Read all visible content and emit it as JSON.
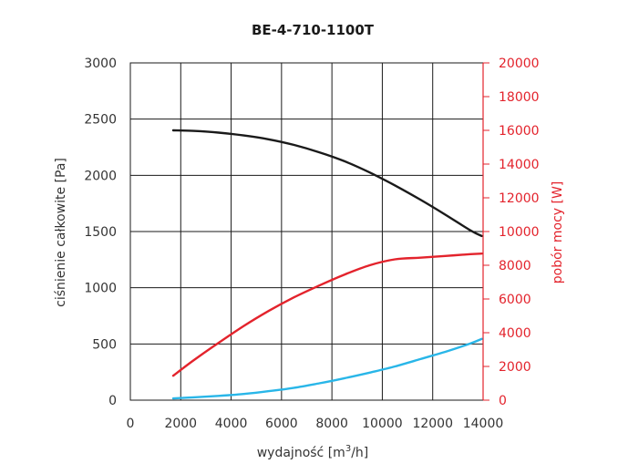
{
  "chart_data": {
    "type": "line",
    "title": "BE-4-710-1100T",
    "xlabel_prefix": "wydajność [m",
    "xlabel_sup": "3",
    "xlabel_suffix": "/h]",
    "ylabel": "ciśnienie całkowite [Pa]",
    "y2label": "pobór mocy [W]",
    "xlim": [
      0,
      14000
    ],
    "ylim": [
      0,
      3000
    ],
    "y2lim": [
      0,
      20000
    ],
    "x_ticks": [
      0,
      2000,
      4000,
      6000,
      8000,
      10000,
      12000,
      14000
    ],
    "y_ticks": [
      0,
      500,
      1000,
      1500,
      2000,
      2500,
      3000
    ],
    "y2_ticks": [
      0,
      2000,
      4000,
      6000,
      8000,
      10000,
      12000,
      14000,
      16000,
      18000,
      20000
    ],
    "grid": true,
    "colors": {
      "pressure": "#1a1a1a",
      "power": "#e3232c",
      "efficiency": "#29b6e8",
      "y2_axis": "#e3232c",
      "axis_text": "#333333"
    },
    "series": [
      {
        "key": "pressure",
        "axis": "left",
        "x": [
          1700,
          2500,
          3500,
          4500,
          5500,
          6500,
          7500,
          8500,
          9500,
          10500,
          11500,
          12500,
          13500,
          13950
        ],
        "y": [
          2400,
          2395,
          2380,
          2355,
          2320,
          2270,
          2205,
          2125,
          2025,
          1910,
          1785,
          1650,
          1510,
          1460
        ]
      },
      {
        "key": "power",
        "axis": "right",
        "x": [
          1700,
          2500,
          3500,
          4500,
          5500,
          6500,
          7500,
          8500,
          9500,
          10500,
          11500,
          12500,
          13500,
          13950
        ],
        "y": [
          1450,
          2350,
          3400,
          4400,
          5300,
          6100,
          6800,
          7450,
          8000,
          8350,
          8450,
          8550,
          8660,
          8690
        ]
      },
      {
        "key": "efficiency",
        "axis": "left",
        "x": [
          1700,
          2500,
          3500,
          4500,
          5500,
          6500,
          7500,
          8500,
          9500,
          10500,
          11500,
          12500,
          13500,
          13950
        ],
        "y": [
          15,
          25,
          38,
          55,
          80,
          110,
          150,
          195,
          245,
          300,
          365,
          430,
          505,
          545
        ]
      }
    ]
  }
}
